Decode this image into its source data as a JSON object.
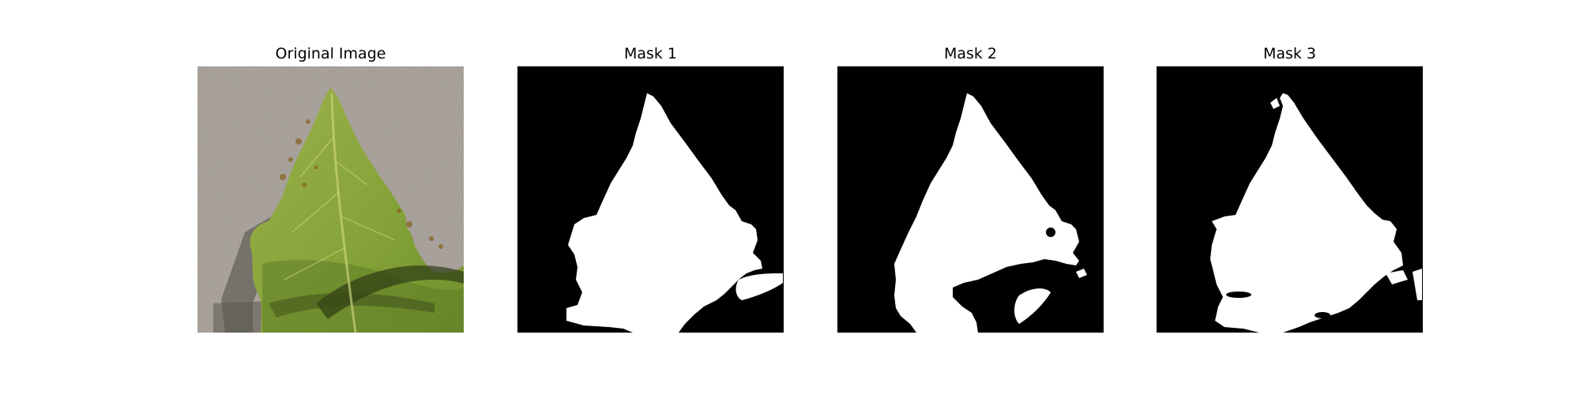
{
  "panels": [
    {
      "id": "original",
      "title": "Original Image",
      "kind": "photo"
    },
    {
      "id": "mask-1",
      "title": "Mask 1",
      "kind": "mask"
    },
    {
      "id": "mask-2",
      "title": "Mask 2",
      "kind": "mask"
    },
    {
      "id": "mask-3",
      "title": "Mask 3",
      "kind": "mask"
    }
  ],
  "colors": {
    "background_paper": "#a39a92",
    "leaf_green": "#8aa63a",
    "leaf_dark_green": "#5f7d26",
    "shadow": "#3a3a30",
    "mask_background": "#000000",
    "mask_foreground": "#ffffff"
  }
}
